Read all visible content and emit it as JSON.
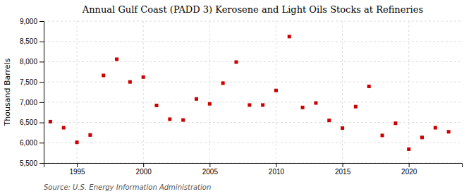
{
  "chart_data": {
    "type": "scatter",
    "title": "Annual Gulf Coast (PADD 3) Kerosene and Light Oils Stocks at Refineries",
    "ylabel": "Thousand Barrels",
    "annotation": "Source: U.S. Energy Information Administration",
    "x": [
      1993,
      1994,
      1995,
      1996,
      1997,
      1998,
      1999,
      2000,
      2001,
      2002,
      2003,
      2004,
      2005,
      2006,
      2007,
      2008,
      2009,
      2010,
      2011,
      2012,
      2013,
      2014,
      2015,
      2016,
      2017,
      2018,
      2019,
      2020,
      2021,
      2022,
      2023
    ],
    "values": [
      6520,
      6370,
      6010,
      6190,
      7660,
      8060,
      7500,
      7620,
      6920,
      6580,
      6560,
      7080,
      6960,
      7470,
      7990,
      6930,
      6930,
      7290,
      8620,
      6870,
      6980,
      6550,
      6360,
      6890,
      7390,
      6180,
      6480,
      5840,
      6130,
      6370,
      6270
    ],
    "color": "#cc0000",
    "marker": "square",
    "xlim": [
      1992.5,
      2024
    ],
    "xticks": [
      1995,
      2000,
      2005,
      2010,
      2015,
      2020
    ],
    "ylim": [
      5500,
      9000
    ],
    "yticks": [
      {
        "value": 5500,
        "label": "5,500"
      },
      {
        "value": 6000,
        "label": "6,000"
      },
      {
        "value": 6500,
        "label": "6,500"
      },
      {
        "value": 7000,
        "label": "7,000"
      },
      {
        "value": 7500,
        "label": "7,500"
      },
      {
        "value": 8000,
        "label": "8,000"
      },
      {
        "value": 8500,
        "label": "8,500"
      },
      {
        "value": 9000,
        "label": "9,000"
      }
    ],
    "grid": true
  }
}
